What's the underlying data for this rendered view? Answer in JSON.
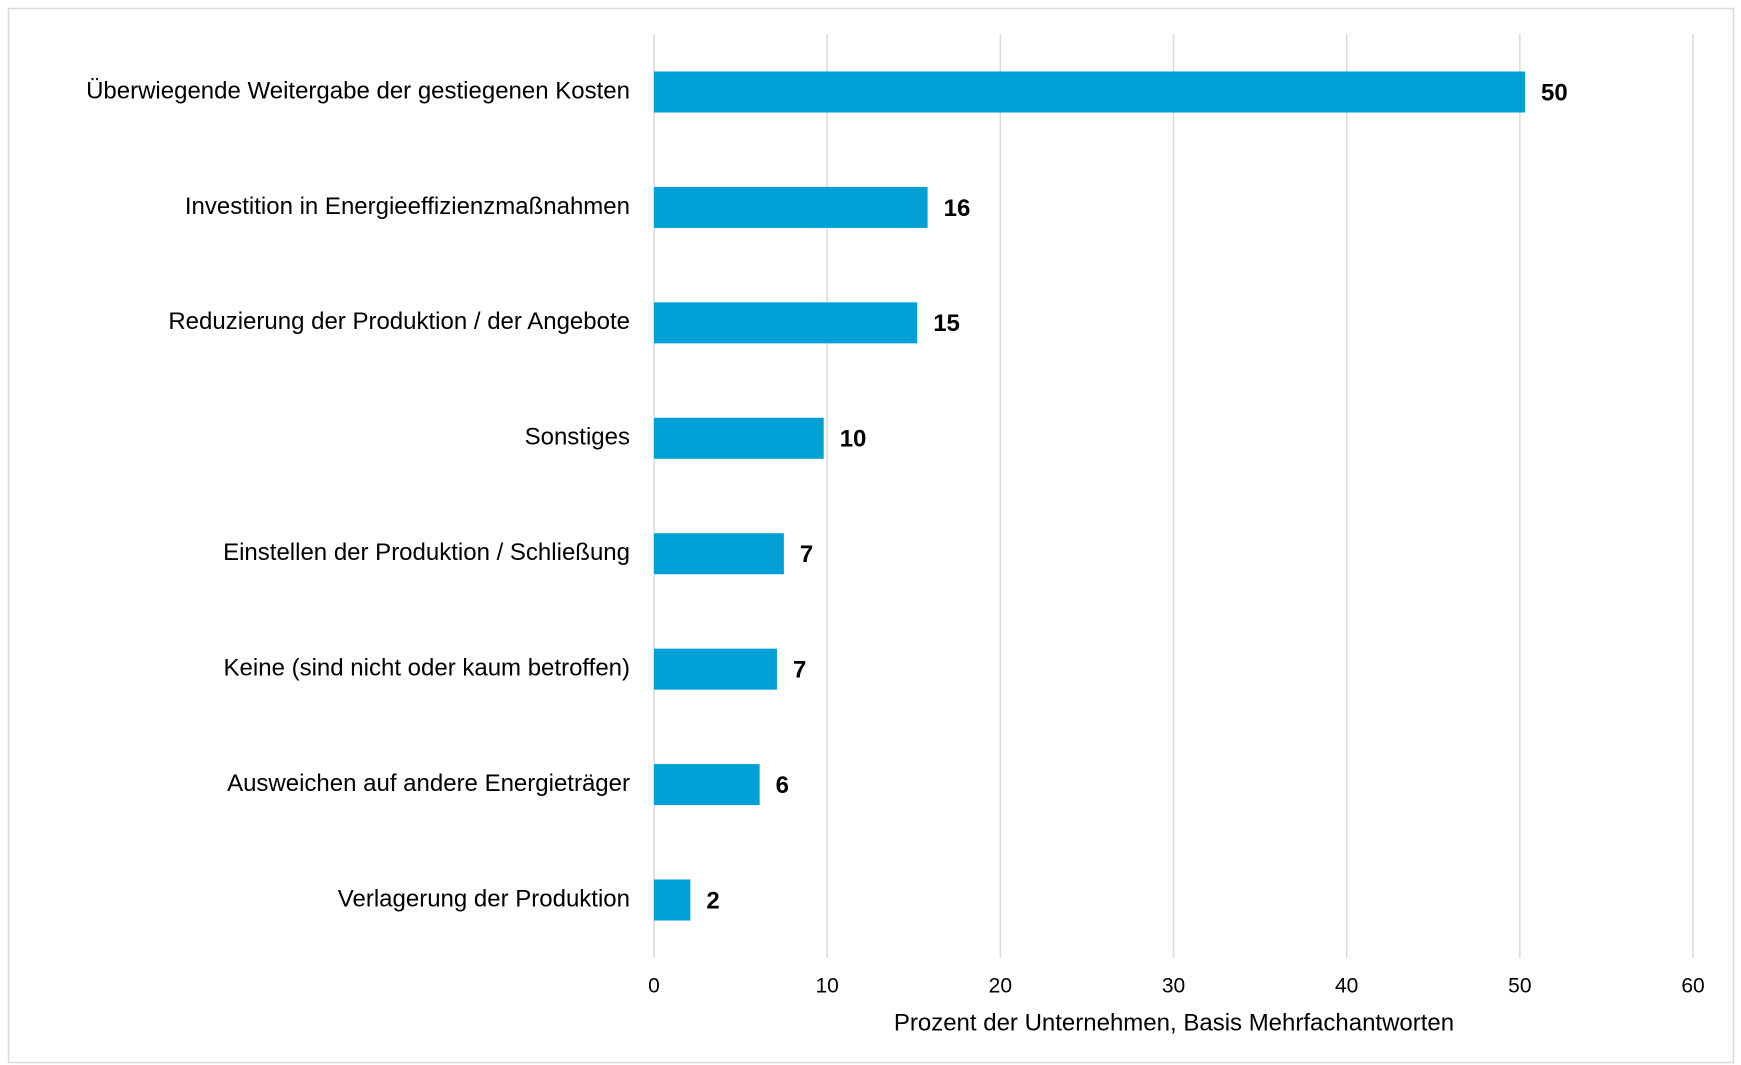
{
  "chart_data": {
    "type": "bar",
    "orientation": "horizontal",
    "categories": [
      "Überwiegende Weitergabe der gestiegenen Kosten",
      "Investition in Energieeffizienzmaßnahmen",
      "Reduzierung der Produktion / der Angebote",
      "Sonstiges",
      "Einstellen der Produktion / Schließung",
      "Keine (sind nicht oder kaum betroffen)",
      "Ausweichen auf andere Energieträger",
      "Verlagerung der Produktion"
    ],
    "values": [
      50.3,
      15.8,
      15.2,
      9.8,
      7.5,
      7.1,
      6.1,
      2.1
    ],
    "value_labels": [
      "50",
      "16",
      "15",
      "10",
      "7",
      "7",
      "6",
      "2"
    ],
    "color": "#009fd6",
    "xlabel": "Prozent der Unternehmen, Basis Mehrfachantworten",
    "xlim": [
      0,
      60
    ],
    "xticks": [
      0,
      10,
      20,
      30,
      40,
      50,
      60
    ],
    "grid": true
  }
}
